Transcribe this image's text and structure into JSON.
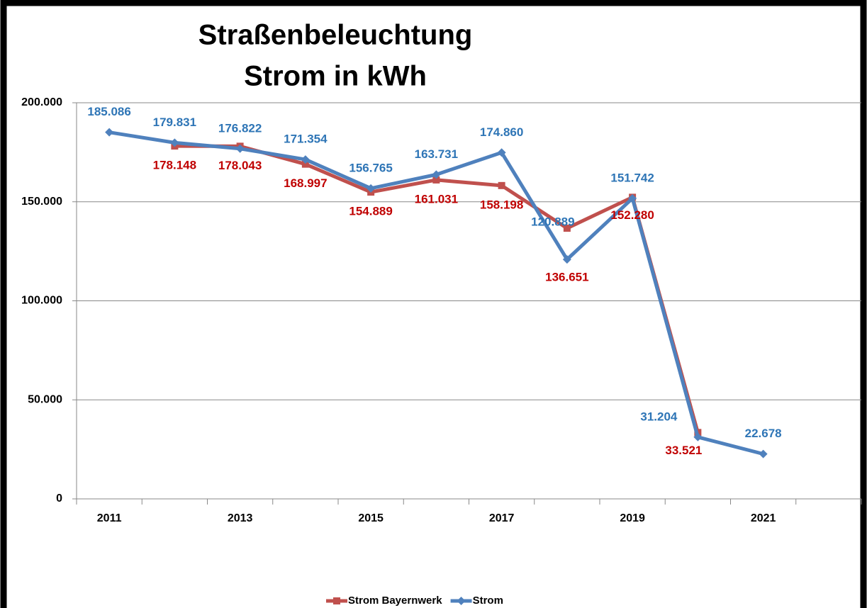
{
  "chart_data": {
    "type": "line",
    "title": "Straßenbeleuchtung",
    "subtitle": "Strom in kWh",
    "categories": [
      "2011",
      null,
      "2013",
      null,
      "2015",
      null,
      "2017",
      null,
      "2019",
      null,
      "2021",
      null
    ],
    "series": [
      {
        "name": "Strom Bayernwerk",
        "color": "#c0504d",
        "label_color": "#c00000",
        "marker": "square",
        "values": [
          null,
          178148,
          178043,
          168997,
          154889,
          161031,
          158198,
          136651,
          152280,
          33521,
          null,
          null
        ],
        "value_labels": [
          null,
          "178.148",
          "178.043",
          "168.997",
          "154.889",
          "161.031",
          "158.198",
          "136.651",
          "152.280",
          "33.521",
          null,
          null
        ]
      },
      {
        "name": "Strom",
        "color": "#4f81bd",
        "label_color": "#2e75b6",
        "marker": "diamond",
        "values": [
          185086,
          179831,
          176822,
          171354,
          156765,
          163731,
          174860,
          120889,
          151742,
          31204,
          22678,
          null
        ],
        "value_labels": [
          "185.086",
          "179.831",
          "176.822",
          "171.354",
          "156.765",
          "163.731",
          "174.860",
          "120.889",
          "151.742",
          "31.204",
          "22.678",
          null
        ]
      }
    ],
    "ylim": [
      0,
      200000
    ],
    "yticks": [
      0,
      {
        "value": 50000,
        "label": "50.000"
      },
      {
        "value": 100000,
        "label": "100.000"
      },
      {
        "value": 150000,
        "label": "150.000"
      },
      {
        "value": 200000,
        "label": "200.000"
      }
    ],
    "grid": true,
    "legend": "bottom"
  }
}
